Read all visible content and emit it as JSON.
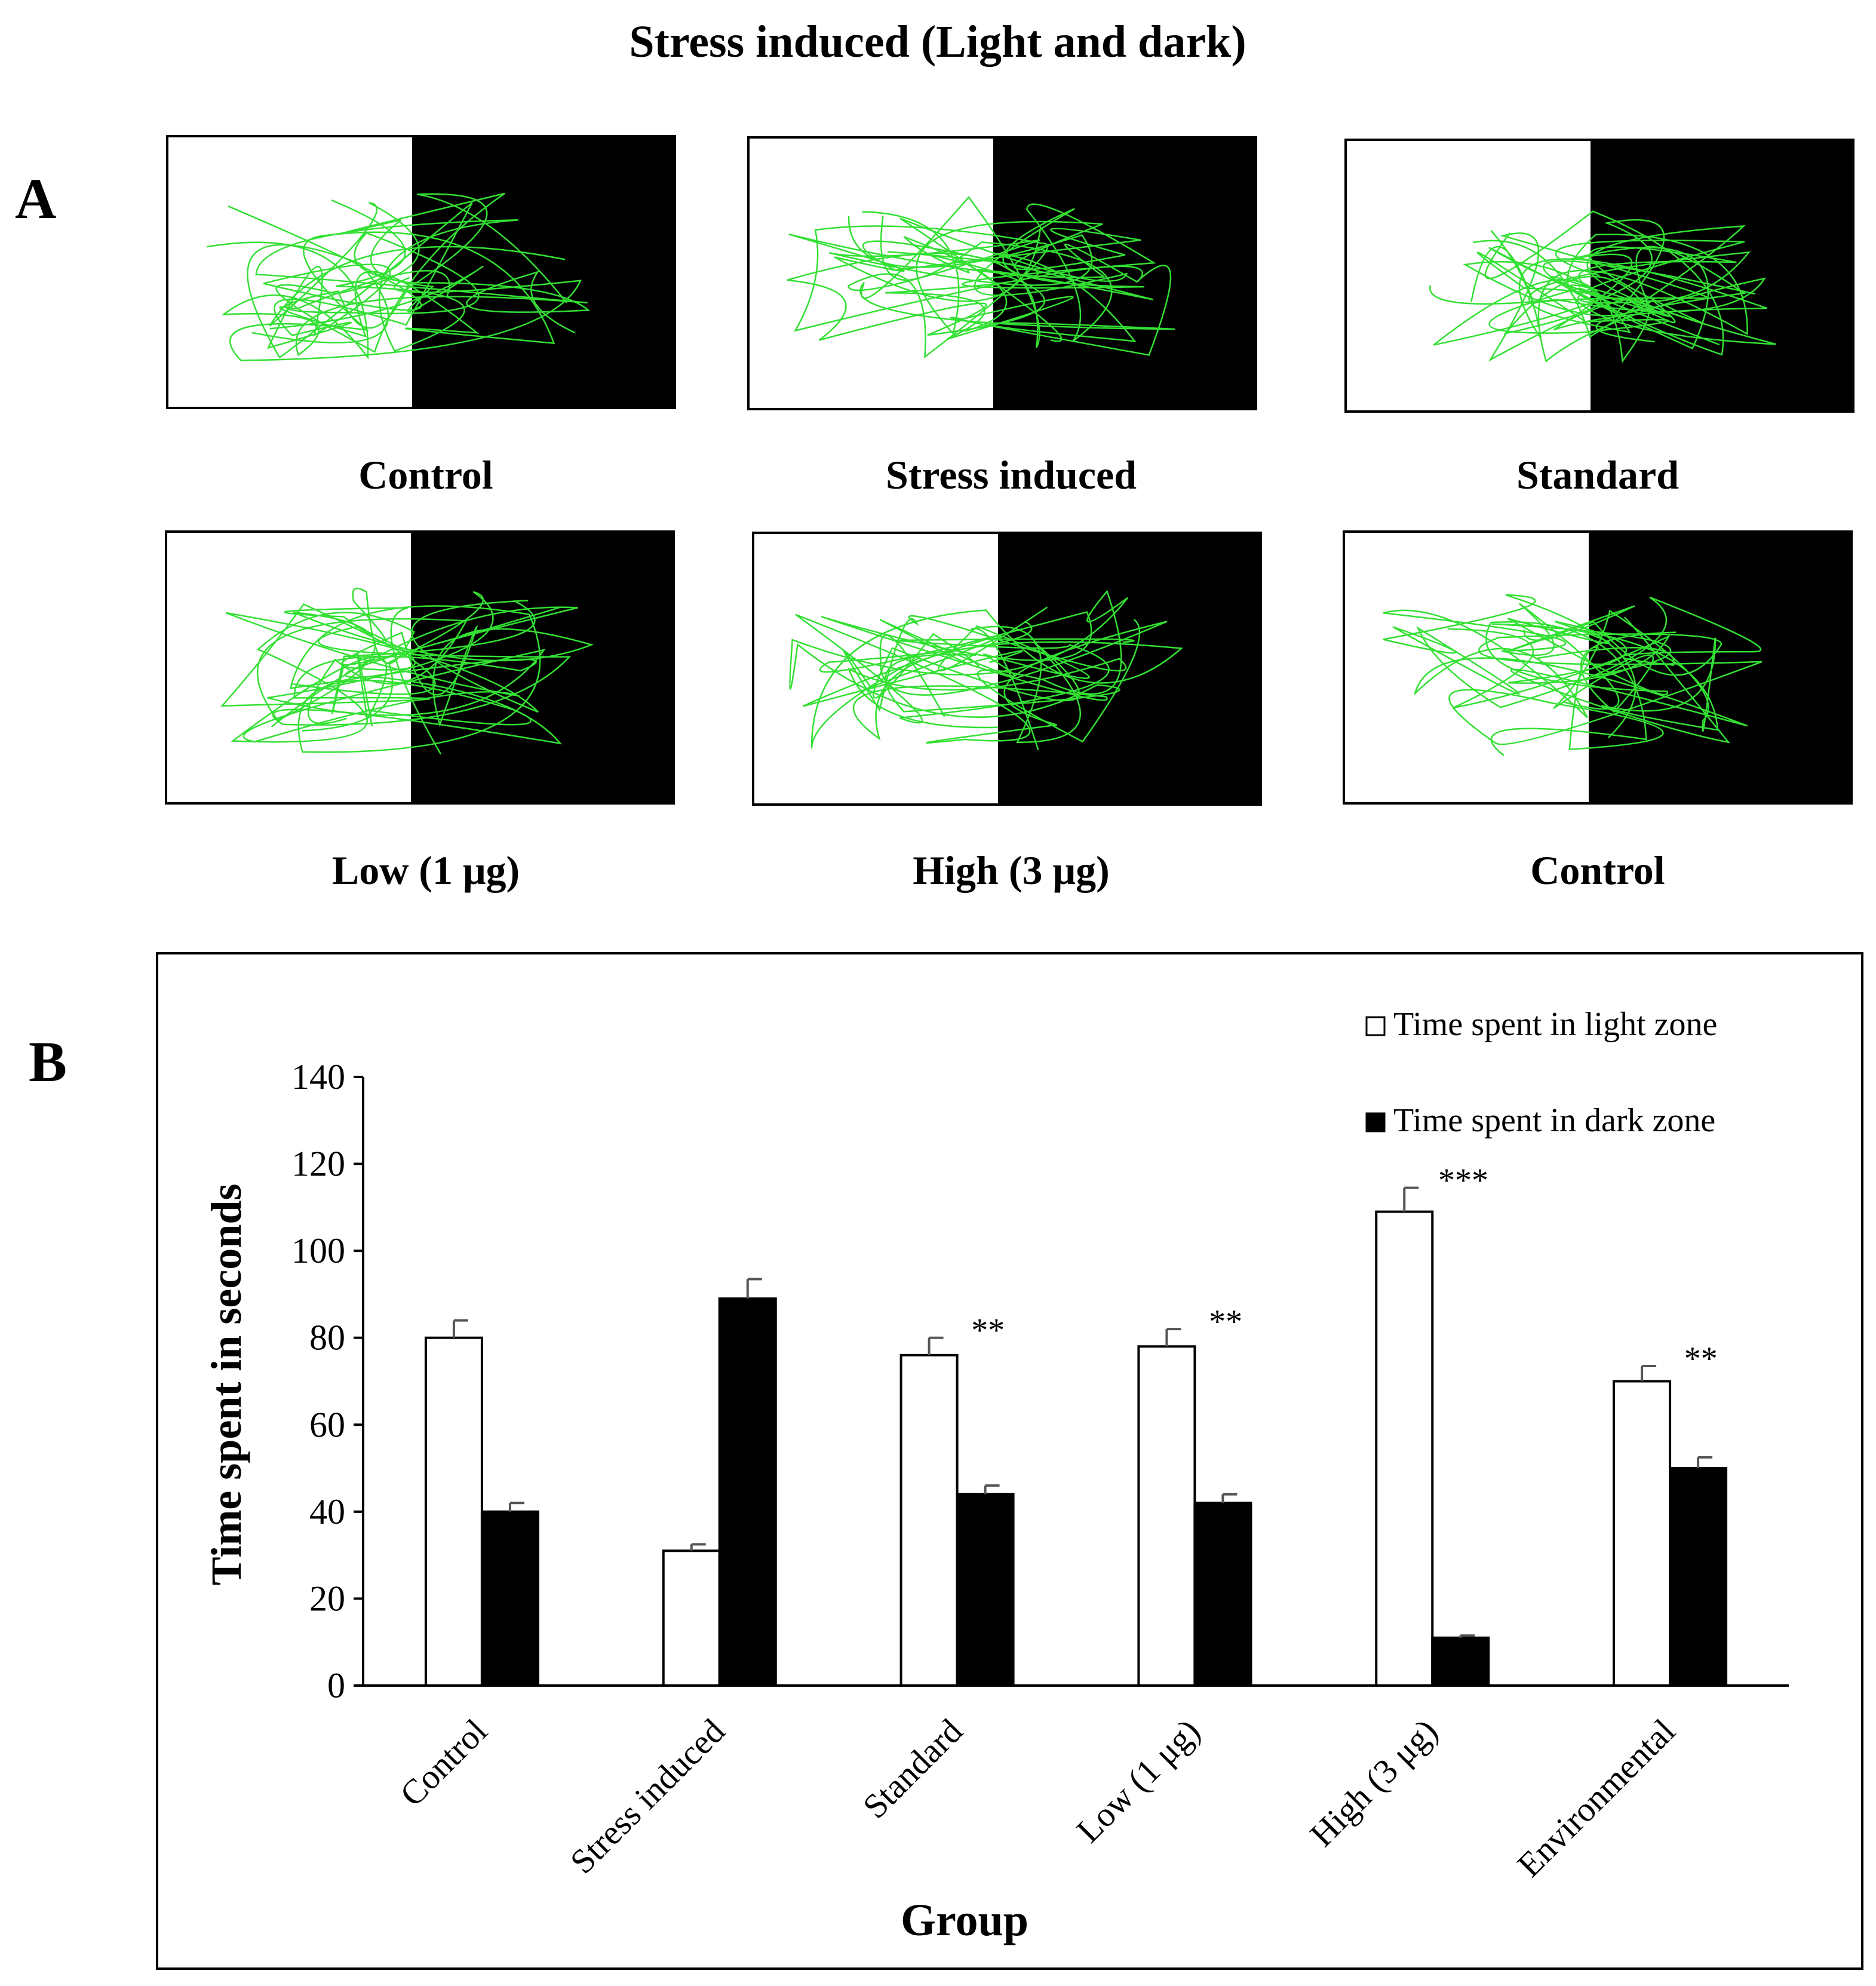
{
  "figure": {
    "title": "Stress induced (Light and dark)",
    "panel_a_letter": "A",
    "panel_b_letter": "B"
  },
  "panel_a": {
    "zone_colors": {
      "light": "#ffffff",
      "dark": "#000000",
      "track": "#33e033"
    },
    "thumbnails": [
      {
        "label": "Control"
      },
      {
        "label": "Stress induced"
      },
      {
        "label": "Standard"
      },
      {
        "label": "Low (1 μg)"
      },
      {
        "label": "High (3 μg)"
      },
      {
        "label": "Control"
      }
    ]
  },
  "chart_data": {
    "type": "bar",
    "title": "",
    "xlabel": "Group",
    "ylabel": "Time spent in seconds",
    "ylim": [
      0,
      140
    ],
    "yticks": [
      0,
      20,
      40,
      60,
      80,
      100,
      120,
      140
    ],
    "grid": false,
    "legend_position": "top-right",
    "categories": [
      "Control",
      "Stress induced",
      "Standard",
      "Low (1 μg)",
      "High (3 μg)",
      "Environmental"
    ],
    "series": [
      {
        "name": "Time spent in light zone",
        "color": "#ffffff",
        "values": [
          80,
          31,
          76,
          78,
          109,
          70
        ],
        "errors": [
          4,
          1.5,
          4,
          4,
          5.5,
          3.5
        ]
      },
      {
        "name": "Time spent in dark zone",
        "color": "#000000",
        "values": [
          40,
          89,
          44,
          42,
          11,
          50
        ],
        "errors": [
          2,
          4.5,
          2,
          2,
          0.5,
          2.5
        ]
      }
    ],
    "annotations": [
      "",
      "",
      "**",
      "**",
      "***",
      "**"
    ]
  }
}
